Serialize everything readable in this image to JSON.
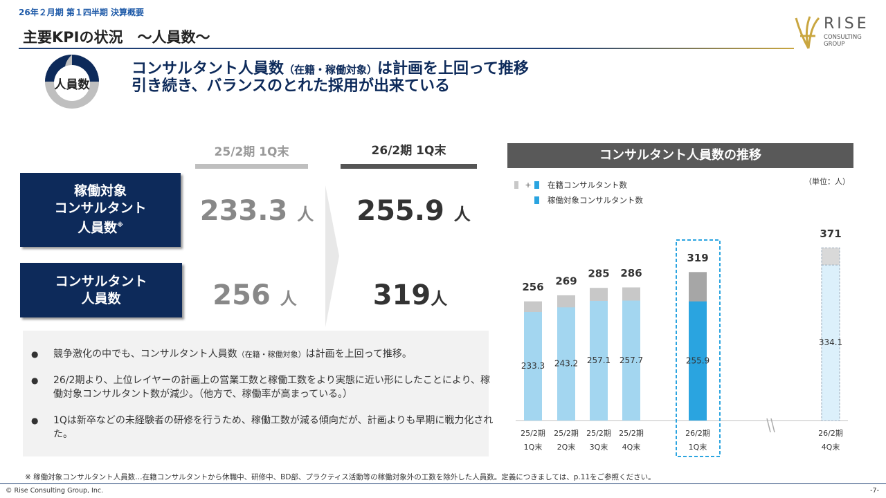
{
  "header": {
    "section": "26年２月期 第１四半期 決算概要",
    "title": "主要KPIの状況　～人員数～",
    "logo": [
      "RISE",
      "CONSULTING",
      "GROUP"
    ]
  },
  "icon_label": "人員数",
  "headline": {
    "line1": [
      "コンサルタント人員数",
      "（在籍・稼働対象）",
      "は計画を上回って推移"
    ],
    "line2": "引き続き、バランスのとれた採用が出来ている"
  },
  "kpi": {
    "columns": [
      "25/2期 1Q末",
      "26/2期 1Q末"
    ],
    "rows": [
      {
        "label": [
          "稼働対象",
          "コンサルタント",
          "人員数",
          "※"
        ],
        "values": [
          {
            "value": "233.3",
            "unit": "人"
          },
          {
            "value": "255.9",
            "unit": "人"
          }
        ]
      },
      {
        "label": [
          "コンサルタント",
          "人員数"
        ],
        "values": [
          {
            "value": "256",
            "unit": "人"
          },
          {
            "value": "319",
            "unit": "人"
          }
        ]
      }
    ]
  },
  "bullets": [
    [
      "競争激化の中でも、コンサルタント人員数",
      "（在籍・稼働対象）",
      "は計画を上回って推移。"
    ],
    [
      "26/2期より、上位レイヤーの計画上の営業工数と稼働工数をより実態に近い形にしたことにより、稼働対象コンサルタント数が減少。（他方で、稼働率が高まっている。）"
    ],
    [
      "1Qは新卒などの未経験者の研修を行うため、稼働工数が減る傾向だが、計画よりも早期に戦力化された。"
    ]
  ],
  "footnote": "※ 稼働対象コンサルタント人員数…在籍コンサルタントから休職中、研修中、BD部、プラクティス活動等の稼働対象外の工数を除外した人員数。定義につきましては、p.11をご参照ください。",
  "copyright": "© Rise Consulting Group, Inc.",
  "page": "-7-",
  "chart_data": {
    "type": "bar",
    "title": "コンサルタント人員数の推移",
    "unit": "（単位：人）",
    "categories": [
      [
        "25/2期",
        "1Q末"
      ],
      [
        "25/2期",
        "2Q末"
      ],
      [
        "25/2期",
        "3Q末"
      ],
      [
        "25/2期",
        "4Q末"
      ],
      [
        "26/2期",
        "1Q末"
      ],
      [
        "26/2期",
        "4Q末"
      ]
    ],
    "series": [
      {
        "name": "在籍コンサルタント数",
        "legend_prefix": "+",
        "values": [
          256,
          269,
          285,
          286,
          319,
          371
        ],
        "colors": [
          "#c8c8c8",
          "#c8c8c8",
          "#c8c8c8",
          "#c8c8c8",
          "#a6a6a6",
          "#d9d9d9"
        ]
      },
      {
        "name": "稼働対象コンサルタント数",
        "values": [
          233.3,
          243.2,
          257.1,
          257.7,
          255.9,
          334.1
        ],
        "colors": [
          "#a3d6f0",
          "#a3d6f0",
          "#a3d6f0",
          "#a3d6f0",
          "#2aa4e0",
          "#dcf0fb"
        ]
      }
    ],
    "dashed": [
      false,
      false,
      false,
      false,
      false,
      true
    ],
    "highlight": 4
  }
}
